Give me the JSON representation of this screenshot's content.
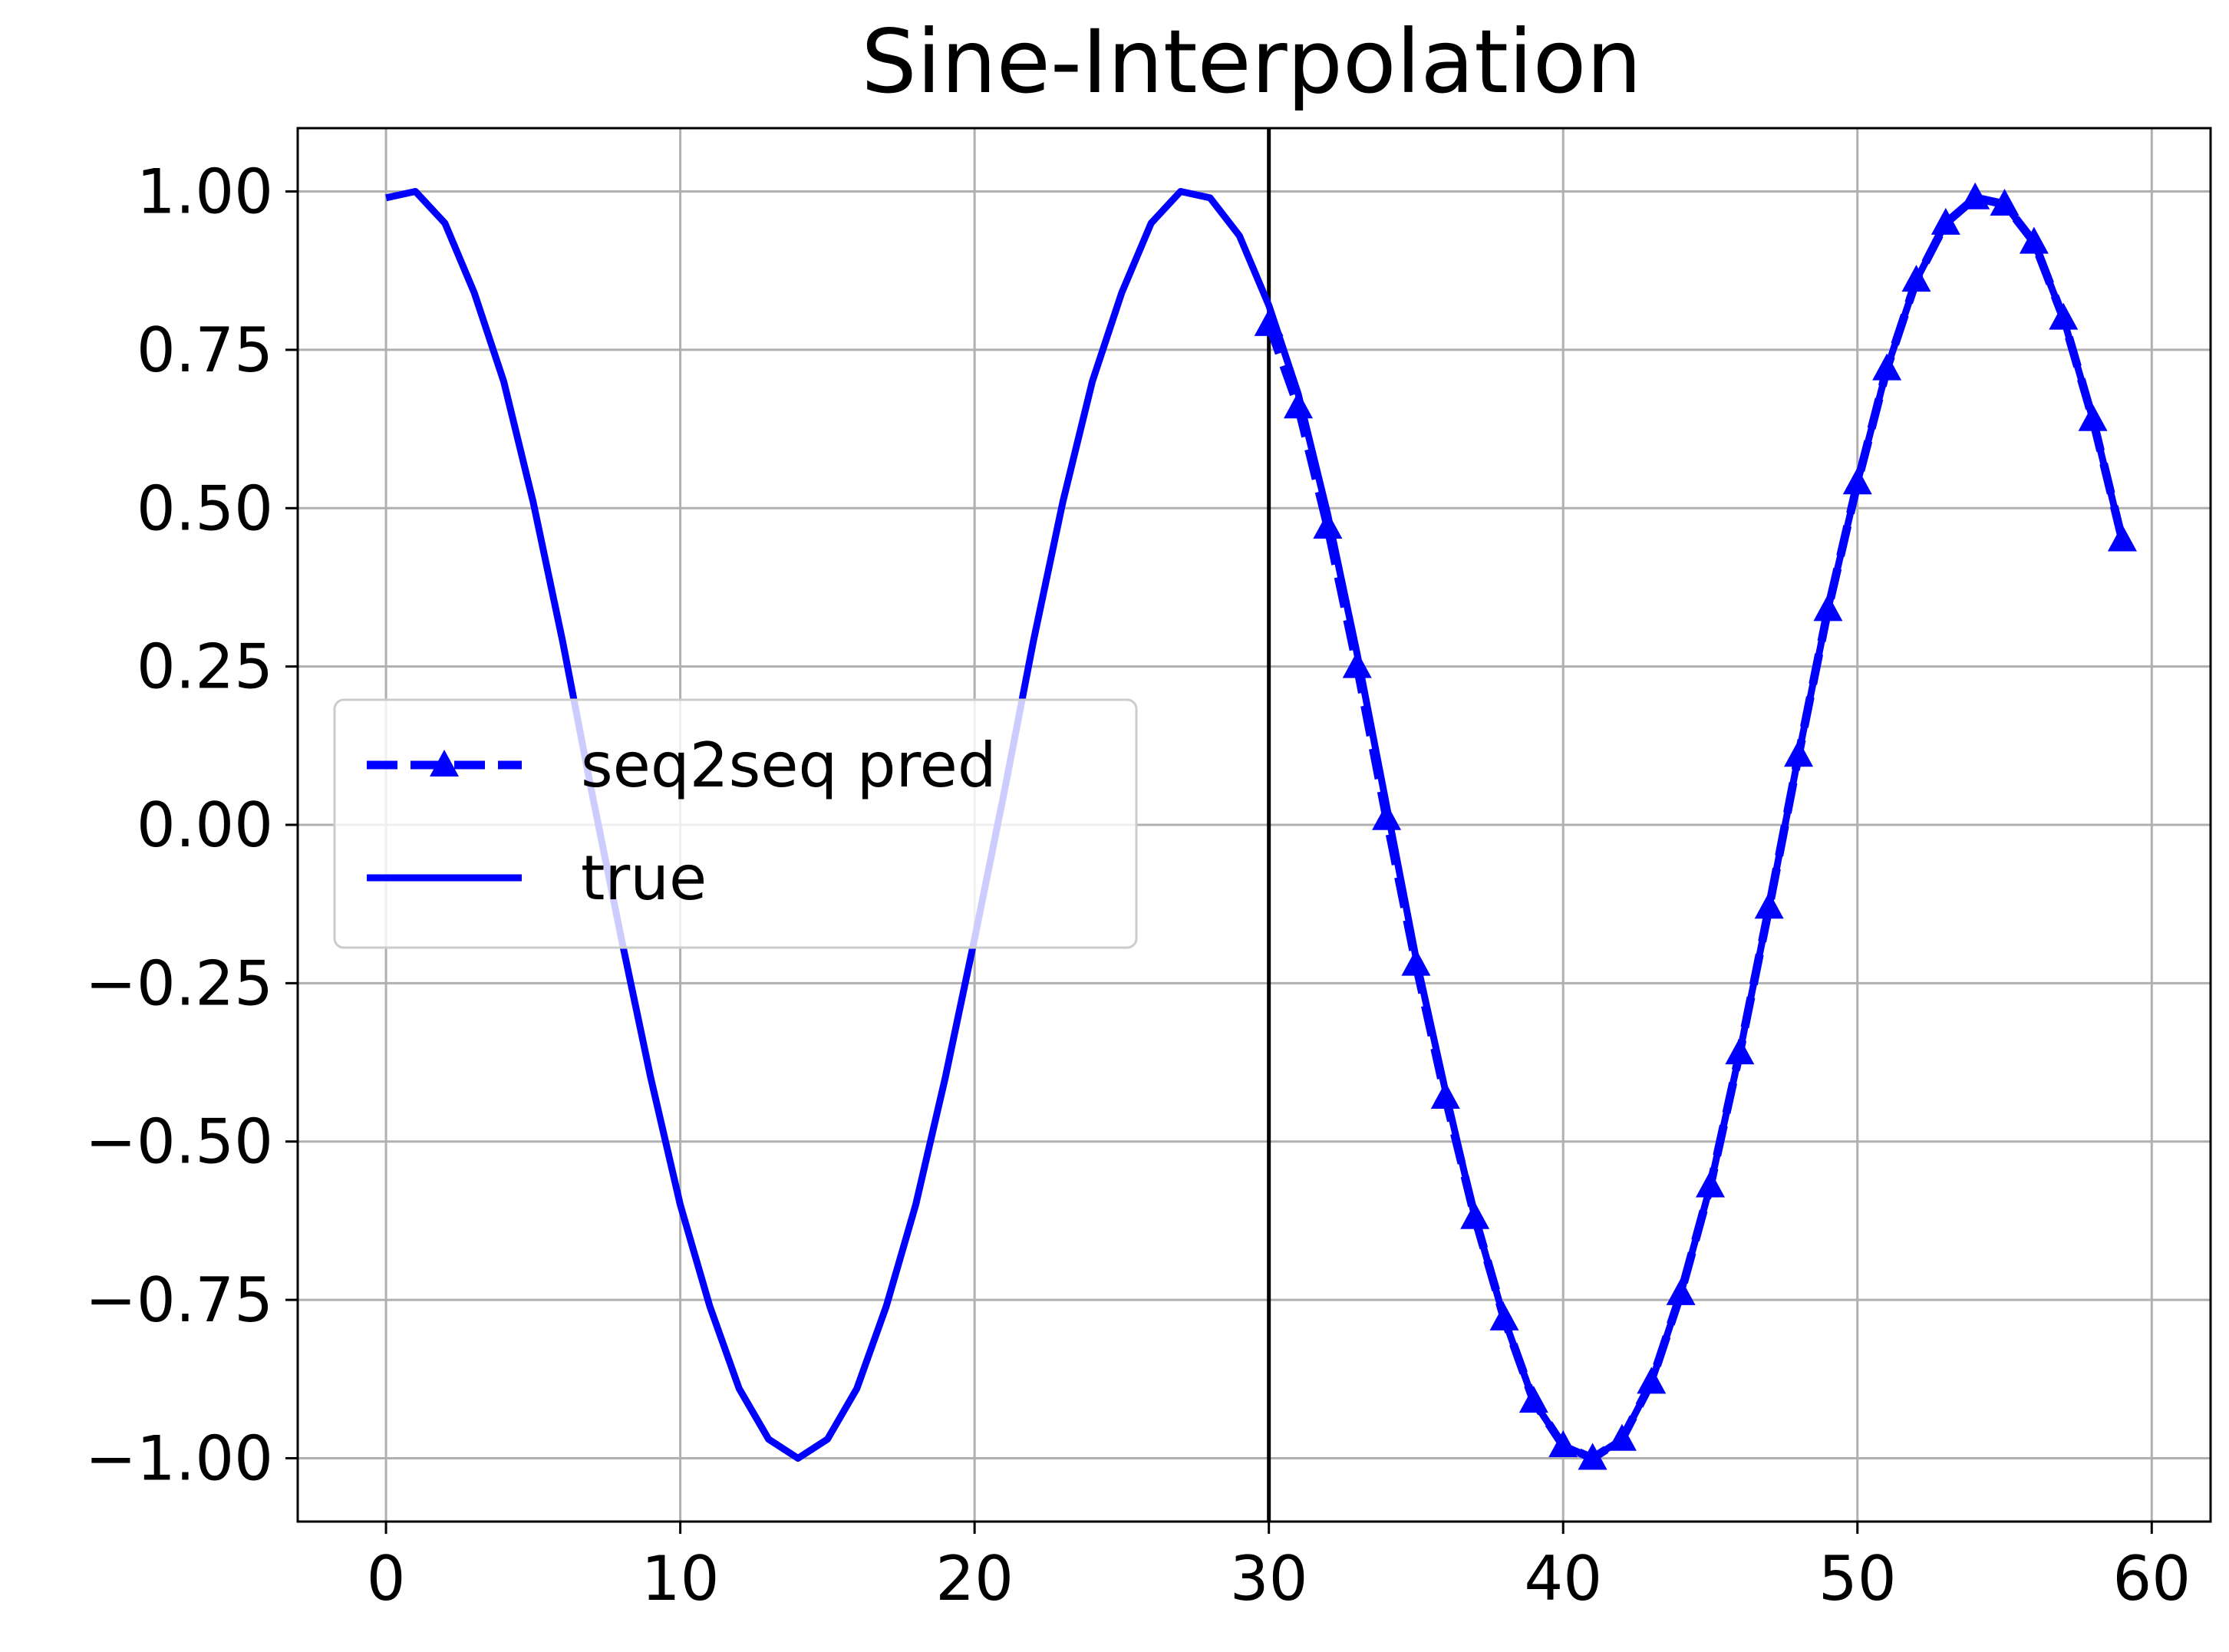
{
  "chart_data": {
    "type": "line",
    "title": "Sine-Interpolation",
    "xlabel": "",
    "ylabel": "",
    "xlim": [
      -3,
      62
    ],
    "ylim": [
      -1.1,
      1.1
    ],
    "xticks": [
      0,
      10,
      20,
      30,
      40,
      50,
      60
    ],
    "xtick_labels": [
      "0",
      "10",
      "20",
      "30",
      "40",
      "50",
      "60"
    ],
    "yticks": [
      1.0,
      0.75,
      0.5,
      0.25,
      0.0,
      -0.25,
      -0.5,
      -0.75,
      -1.0
    ],
    "ytick_labels": [
      "1.00",
      "0.75",
      "0.50",
      "0.25",
      "0.00",
      "−0.25",
      "−0.50",
      "−0.75",
      "−1.00"
    ],
    "grid": true,
    "legend_position": "center-left",
    "vertical_line_x": 30,
    "series": [
      {
        "name": "seq2seq pred",
        "style": "dashed",
        "marker": "triangle",
        "color": "#0000ff",
        "x": [
          30,
          31,
          32,
          33,
          34,
          35,
          36,
          37,
          38,
          39,
          40,
          41,
          42,
          43,
          44,
          45,
          46,
          47,
          48,
          49,
          50,
          51,
          52,
          53,
          54,
          55,
          56,
          57,
          58,
          59
        ],
        "y": [
          0.79,
          0.66,
          0.47,
          0.25,
          0.01,
          -0.22,
          -0.43,
          -0.62,
          -0.78,
          -0.91,
          -0.98,
          -1.0,
          -0.97,
          -0.88,
          -0.74,
          -0.57,
          -0.36,
          -0.13,
          0.11,
          0.34,
          0.54,
          0.72,
          0.86,
          0.95,
          0.99,
          0.98,
          0.92,
          0.8,
          0.64,
          0.45
        ]
      },
      {
        "name": "true",
        "style": "solid",
        "marker": "none",
        "color": "#0000ff",
        "x": [
          0,
          1,
          2,
          3,
          4,
          5,
          6,
          7,
          8,
          9,
          10,
          11,
          12,
          13,
          14,
          15,
          16,
          17,
          18,
          19,
          20,
          21,
          22,
          23,
          24,
          25,
          26,
          27,
          28,
          29,
          30,
          31,
          32,
          33,
          34,
          35,
          36,
          37,
          38,
          39,
          40,
          41,
          42,
          43,
          44,
          45,
          46,
          47,
          48,
          49,
          50,
          51,
          52,
          53,
          54,
          55,
          56,
          57,
          58,
          59
        ],
        "y": [
          0.99,
          1.0,
          0.95,
          0.84,
          0.7,
          0.51,
          0.29,
          0.05,
          -0.18,
          -0.4,
          -0.6,
          -0.76,
          -0.89,
          -0.97,
          -1.0,
          -0.97,
          -0.89,
          -0.76,
          -0.6,
          -0.4,
          -0.18,
          0.05,
          0.29,
          0.51,
          0.7,
          0.84,
          0.95,
          1.0,
          0.99,
          0.93,
          0.82,
          0.68,
          0.49,
          0.27,
          0.03,
          -0.21,
          -0.42,
          -0.62,
          -0.78,
          -0.91,
          -0.98,
          -1.0,
          -0.97,
          -0.88,
          -0.74,
          -0.57,
          -0.36,
          -0.13,
          0.11,
          0.34,
          0.54,
          0.72,
          0.86,
          0.95,
          0.99,
          0.98,
          0.92,
          0.8,
          0.64,
          0.45
        ]
      }
    ]
  }
}
